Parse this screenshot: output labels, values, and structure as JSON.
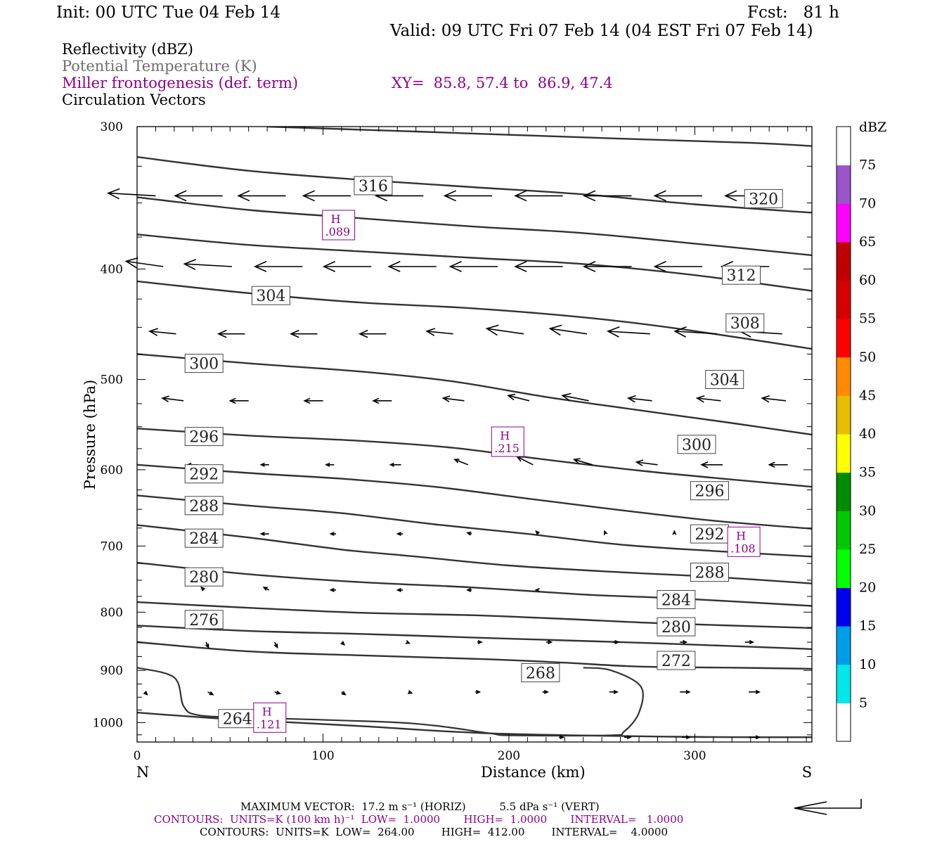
{
  "header": {
    "init": "Init: 00 UTC Tue 04 Feb 14",
    "fcst": "Fcst:   81 h",
    "valid": "Valid: 09 UTC Fri 07 Feb 14 (04 EST Fri 07 Feb 14)"
  },
  "fields": {
    "reflectivity": "Reflectivity (dBZ)",
    "theta": "Potential Temperature (K)",
    "miller": "Miller frontogenesis (def. term)",
    "xy": "XY=  85.8, 57.4 to  86.9, 47.4",
    "vectors": "Circulation Vectors"
  },
  "colors": {
    "purple": "#8b008b",
    "theta_gray": "#6e6e6e",
    "contour": "#333333",
    "frame": "#000000"
  },
  "footer": {
    "max_vector": "MAXIMUM VECTOR:  17.2 m s⁻¹ (HORIZ)          5.5 dPa s⁻¹ (VERT)",
    "contours_miller": "CONTOURS:  UNITS=K (100 km h)⁻¹  LOW=  1.0000       HIGH=  1.0000       INTERVAL=   1.0000",
    "contours_theta": "CONTOURS:  UNITS=K  LOW=  264.00        HIGH=  412.00        INTERVAL=    4.0000"
  },
  "colorbar": {
    "unit": "dBZ",
    "labels": [
      "5",
      "10",
      "15",
      "20",
      "25",
      "30",
      "35",
      "40",
      "45",
      "50",
      "55",
      "60",
      "65",
      "70",
      "75"
    ],
    "colors": [
      "#ffffff",
      "#00e8e8",
      "#009ee8",
      "#0000f0",
      "#00ff00",
      "#00c800",
      "#008c00",
      "#ffff00",
      "#e6be00",
      "#ff8c00",
      "#ff0000",
      "#d60000",
      "#c00000",
      "#ff00ff",
      "#9a55c8",
      "#ffffff"
    ]
  },
  "chart_data": {
    "type": "cross-section",
    "xlabel": "Distance (km)",
    "ylabel": "Pressure (hPa)",
    "xlim": [
      0,
      363
    ],
    "ylim": [
      1040,
      300
    ],
    "y_scale": "log-pressure",
    "x_ticks": [
      "0",
      "100",
      "200",
      "300"
    ],
    "y_ticks": [
      "300",
      "400",
      "500",
      "600",
      "700",
      "800",
      "900",
      "1000"
    ],
    "x_end_left": "N",
    "x_end_right": "S",
    "theta_contours": [
      {
        "value": 264,
        "points": [
          [
            0,
            980
          ],
          [
            50,
            993
          ],
          [
            120,
            1007
          ],
          [
            190,
            1022
          ],
          [
            290,
            1029
          ],
          [
            363,
            1030
          ]
        ]
      },
      {
        "value": 268,
        "points": [
          [
            0,
            850
          ],
          [
            60,
            866
          ],
          [
            120,
            873
          ],
          [
            190,
            880
          ],
          [
            230,
            886
          ],
          [
            270,
            893
          ],
          [
            320,
            895
          ],
          [
            363,
            897
          ]
        ]
      },
      {
        "value": 272,
        "points": [
          [
            0,
            822
          ],
          [
            60,
            831
          ],
          [
            120,
            836
          ],
          [
            180,
            842
          ],
          [
            230,
            847
          ],
          [
            280,
            852
          ],
          [
            363,
            862
          ]
        ]
      },
      {
        "value": 276,
        "points": [
          [
            0,
            784
          ],
          [
            60,
            793
          ],
          [
            120,
            801
          ],
          [
            180,
            805
          ],
          [
            230,
            811
          ],
          [
            280,
            818
          ],
          [
            363,
            826
          ]
        ]
      },
      {
        "value": 280,
        "points": [
          [
            0,
            724
          ],
          [
            60,
            741
          ],
          [
            120,
            753
          ],
          [
            180,
            761
          ],
          [
            240,
            772
          ],
          [
            290,
            778
          ],
          [
            363,
            790
          ]
        ]
      },
      {
        "value": 284,
        "points": [
          [
            0,
            671
          ],
          [
            60,
            688
          ],
          [
            110,
            705
          ],
          [
            150,
            715
          ],
          [
            200,
            728
          ],
          [
            260,
            738
          ],
          [
            310,
            745
          ],
          [
            363,
            755
          ]
        ]
      },
      {
        "value": 288,
        "points": [
          [
            0,
            632
          ],
          [
            60,
            645
          ],
          [
            110,
            655
          ],
          [
            160,
            670
          ],
          [
            210,
            683
          ],
          [
            260,
            698
          ],
          [
            310,
            707
          ],
          [
            363,
            715
          ]
        ]
      },
      {
        "value": 292,
        "points": [
          [
            0,
            594
          ],
          [
            60,
            604
          ],
          [
            110,
            611
          ],
          [
            160,
            621
          ],
          [
            210,
            636
          ],
          [
            260,
            651
          ],
          [
            310,
            665
          ],
          [
            363,
            676
          ]
        ]
      },
      {
        "value": 296,
        "points": [
          [
            0,
            552
          ],
          [
            60,
            560
          ],
          [
            120,
            566
          ],
          [
            170,
            574
          ],
          [
            220,
            588
          ],
          [
            270,
            601
          ],
          [
            320,
            612
          ],
          [
            363,
            621
          ]
        ]
      },
      {
        "value": 300,
        "points": [
          [
            0,
            475
          ],
          [
            60,
            484
          ],
          [
            120,
            492
          ],
          [
            170,
            502
          ],
          [
            220,
            518
          ],
          [
            270,
            532
          ],
          [
            320,
            546
          ],
          [
            363,
            559
          ]
        ]
      },
      {
        "value": 304,
        "points": [
          [
            0,
            410
          ],
          [
            60,
            420
          ],
          [
            120,
            428
          ],
          [
            180,
            433
          ],
          [
            240,
            441
          ],
          [
            290,
            451
          ],
          [
            363,
            470
          ]
        ]
      },
      {
        "value": 308,
        "points": [
          [
            0,
            373
          ],
          [
            60,
            381
          ],
          [
            120,
            386
          ],
          [
            180,
            391
          ],
          [
            240,
            396
          ],
          [
            300,
            405
          ],
          [
            363,
            418
          ]
        ]
      },
      {
        "value": 312,
        "points": [
          [
            0,
            346
          ],
          [
            60,
            355
          ],
          [
            120,
            361
          ],
          [
            180,
            367
          ],
          [
            240,
            372
          ],
          [
            300,
            380
          ],
          [
            363,
            389
          ]
        ]
      },
      {
        "value": 316,
        "points": [
          [
            0,
            319
          ],
          [
            60,
            328
          ],
          [
            120,
            334
          ],
          [
            180,
            339
          ],
          [
            240,
            344
          ],
          [
            300,
            351
          ],
          [
            363,
            357
          ]
        ]
      },
      {
        "value": 320,
        "points": [
          [
            70,
            300
          ],
          [
            150,
            303
          ],
          [
            250,
            307
          ],
          [
            330,
            310
          ],
          [
            363,
            312
          ]
        ]
      }
    ],
    "theta_labels": [
      {
        "value": 316,
        "x": 127,
        "p": 338
      },
      {
        "value": 320,
        "x": 337,
        "p": 347
      },
      {
        "value": 312,
        "x": 325,
        "p": 405
      },
      {
        "value": 304,
        "x": 72,
        "p": 422
      },
      {
        "value": 308,
        "x": 327,
        "p": 446
      },
      {
        "value": 300,
        "x": 36,
        "p": 484
      },
      {
        "value": 304,
        "x": 316,
        "p": 500
      },
      {
        "value": 296,
        "x": 36,
        "p": 561
      },
      {
        "value": 300,
        "x": 301,
        "p": 570
      },
      {
        "value": 292,
        "x": 36,
        "p": 605
      },
      {
        "value": 296,
        "x": 308,
        "p": 626
      },
      {
        "value": 288,
        "x": 36,
        "p": 645
      },
      {
        "value": 284,
        "x": 36,
        "p": 689
      },
      {
        "value": 292,
        "x": 308,
        "p": 683
      },
      {
        "value": 288,
        "x": 308,
        "p": 738
      },
      {
        "value": 280,
        "x": 36,
        "p": 745
      },
      {
        "value": 284,
        "x": 290,
        "p": 780
      },
      {
        "value": 276,
        "x": 36,
        "p": 812
      },
      {
        "value": 280,
        "x": 290,
        "p": 824
      },
      {
        "value": 272,
        "x": 290,
        "p": 882
      },
      {
        "value": 268,
        "x": 217,
        "p": 904
      },
      {
        "value": 264,
        "x": 54,
        "p": 992
      }
    ],
    "frontogenesis_contour": {
      "value": 1.0,
      "points": [
        [
          0,
          895
        ],
        [
          20,
          913
        ],
        [
          25,
          967
        ],
        [
          33,
          985
        ],
        [
          60,
          990
        ],
        [
          130,
          998
        ],
        [
          160,
          1006
        ],
        [
          190,
          1022
        ],
        [
          201,
          1026
        ],
        [
          254,
          1026
        ],
        [
          262,
          1018
        ],
        [
          270,
          980
        ],
        [
          271,
          930
        ],
        [
          255,
          900
        ],
        [
          240,
          895
        ]
      ]
    },
    "frontogenesis_maxima": [
      {
        "label": "H",
        "value": ".089",
        "x": 108,
        "p": 366
      },
      {
        "label": "H",
        "value": ".215",
        "x": 199,
        "p": 567
      },
      {
        "label": "H",
        "value": ".108",
        "x": 326,
        "p": 694
      },
      {
        "label": "H",
        "value": ".121",
        "x": 71,
        "p": 990
      }
    ],
    "vector_rows": [
      {
        "p": 345,
        "vectors": [
          [
            10,
            -0.9,
            0.05
          ],
          [
            46,
            -0.9,
            0.0
          ],
          [
            80,
            -0.9,
            0.0
          ],
          [
            115,
            -0.9,
            0.0
          ],
          [
            154,
            -0.9,
            0.0
          ],
          [
            191,
            -0.9,
            0.0
          ],
          [
            229,
            -0.9,
            0.0
          ],
          [
            266,
            -0.9,
            0.0
          ],
          [
            304,
            -0.9,
            0.0
          ],
          [
            342,
            -0.9,
            0.0
          ]
        ]
      },
      {
        "p": 398,
        "vectors": [
          [
            14,
            -0.7,
            0.1
          ],
          [
            51,
            -0.9,
            0.05
          ],
          [
            89,
            -0.9,
            0.0
          ],
          [
            126,
            -0.9,
            0.0
          ],
          [
            161,
            -0.9,
            0.0
          ],
          [
            194,
            -0.9,
            0.0
          ],
          [
            229,
            -0.9,
            0.0
          ],
          [
            266,
            -0.9,
            0.0
          ],
          [
            304,
            -0.9,
            0.0
          ],
          [
            340,
            -0.9,
            0.0
          ]
        ]
      },
      {
        "p": 456,
        "vectors": [
          [
            21,
            -0.5,
            0.05
          ],
          [
            58,
            -0.5,
            0.0
          ],
          [
            97,
            -0.5,
            0.0
          ],
          [
            134,
            -0.5,
            0.0
          ],
          [
            170,
            -0.5,
            0.05
          ],
          [
            208,
            -0.7,
            0.1
          ],
          [
            242,
            -0.7,
            0.1
          ],
          [
            276,
            -0.8,
            0.05
          ],
          [
            312,
            -0.8,
            0.05
          ],
          [
            347,
            -0.8,
            0.05
          ]
        ]
      },
      {
        "p": 522,
        "vectors": [
          [
            25,
            -0.4,
            0.05
          ],
          [
            60,
            -0.35,
            0.0
          ],
          [
            100,
            -0.35,
            0.0
          ],
          [
            137,
            -0.35,
            0.0
          ],
          [
            176,
            -0.4,
            0.05
          ],
          [
            211,
            -0.4,
            0.1
          ],
          [
            243,
            -0.5,
            0.1
          ],
          [
            277,
            -0.45,
            0.05
          ],
          [
            314,
            -0.45,
            0.05
          ],
          [
            349,
            -0.45,
            0.05
          ]
        ]
      },
      {
        "p": 594,
        "vectors": [
          [
            33,
            -0.2,
            0.0
          ],
          [
            71,
            -0.15,
            0.0
          ],
          [
            106,
            -0.15,
            0.0
          ],
          [
            142,
            -0.2,
            0.0
          ],
          [
            178,
            -0.25,
            0.1
          ],
          [
            213,
            -0.3,
            0.15
          ],
          [
            245,
            -0.35,
            0.1
          ],
          [
            280,
            -0.4,
            0.05
          ],
          [
            315,
            -0.4,
            0.0
          ],
          [
            350,
            -0.35,
            0.0
          ]
        ]
      },
      {
        "p": 683,
        "vectors": [
          [
            35,
            -0.15,
            0.0
          ],
          [
            71,
            -0.15,
            0.0
          ],
          [
            107,
            -0.1,
            0.0
          ],
          [
            143,
            -0.1,
            0.0
          ],
          [
            180,
            -0.08,
            0.02
          ],
          [
            216,
            -0.05,
            0.05
          ],
          [
            252,
            -0.02,
            0.05
          ],
          [
            289,
            0.0,
            0.05
          ],
          [
            325,
            0.0,
            0.03
          ],
          [
            360,
            0.0,
            0.0
          ]
        ]
      },
      {
        "p": 765,
        "vectors": [
          [
            36,
            -0.05,
            0.05
          ],
          [
            71,
            -0.1,
            0.05
          ],
          [
            107,
            -0.1,
            0.0
          ],
          [
            143,
            -0.1,
            0.0
          ],
          [
            180,
            -0.08,
            0.0
          ],
          [
            216,
            -0.05,
            0.0
          ],
          [
            252,
            0.0,
            0.0
          ],
          [
            289,
            0.0,
            0.0
          ],
          [
            325,
            0.0,
            0.0
          ]
        ]
      },
      {
        "p": 850,
        "vectors": [
          [
            37,
            0.05,
            -0.1
          ],
          [
            74,
            0.05,
            -0.1
          ],
          [
            110,
            0.05,
            -0.05
          ],
          [
            145,
            0.05,
            -0.02
          ],
          [
            183,
            0.08,
            0.0
          ],
          [
            220,
            0.1,
            0.0
          ],
          [
            256,
            0.1,
            0.0
          ],
          [
            292,
            0.12,
            0.0
          ],
          [
            327,
            0.15,
            0.0
          ]
        ]
      },
      {
        "p": 940,
        "vectors": [
          [
            4,
            0.05,
            -0.05
          ],
          [
            38,
            0.1,
            -0.05
          ],
          [
            74,
            0.1,
            -0.03
          ],
          [
            110,
            0.07,
            -0.05
          ],
          [
            146,
            0.06,
            -0.02
          ],
          [
            182,
            0.08,
            0.0
          ],
          [
            218,
            0.1,
            0.0
          ],
          [
            254,
            0.15,
            0.0
          ],
          [
            292,
            0.18,
            0.0
          ],
          [
            329,
            0.2,
            0.0
          ]
        ]
      },
      {
        "p": 1030,
        "vectors": [
          [
            227,
            0.08,
            0.0
          ],
          [
            262,
            0.12,
            0.0
          ],
          [
            293,
            0.15,
            0.0
          ],
          [
            329,
            0.2,
            0.0
          ]
        ]
      }
    ]
  }
}
